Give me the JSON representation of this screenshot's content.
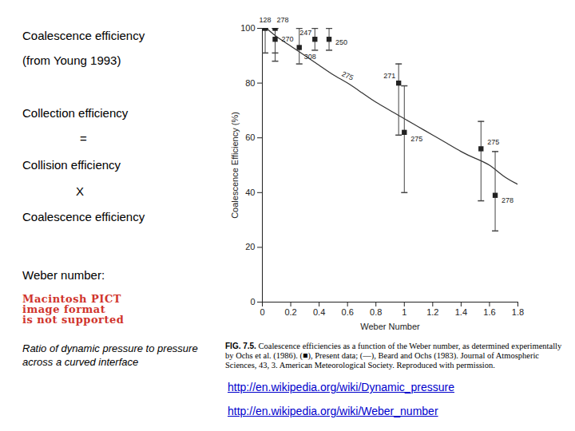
{
  "chart_data": {
    "type": "scatter",
    "x_label": "Weber Number",
    "y_label": "Coalescence Efficiency (%)",
    "caption_label": "FIG. 7.5.",
    "caption": "Coalescence efficiencies as a function of the Weber number, as determined experimentally by Ochs et al. (1986). (■), Present data; (—), Beard and Ochs (1983). Journal of Atmospheric Sciences, 43, 3. American Meteorological Society. Reproduced with permission.",
    "xlim": [
      0,
      1.8
    ],
    "xticks": [
      0,
      0.2,
      0.4,
      0.6,
      0.8,
      1,
      1.2,
      1.4,
      1.6,
      1.8
    ],
    "ylim": [
      0,
      100
    ],
    "yticks": [
      0,
      20,
      40,
      60,
      80,
      100
    ],
    "grid": false,
    "series": [
      {
        "type": "scatter",
        "marker": "square",
        "color": "#222222",
        "x": [
          0.02,
          0.09,
          0.09,
          0.26,
          0.37,
          0.47,
          0.96,
          1.0,
          1.54,
          1.64
        ],
        "values": [
          100,
          100,
          96,
          93,
          96,
          96,
          80,
          62,
          56,
          39
        ],
        "error_low": [
          91,
          91,
          88,
          87,
          92,
          92,
          61,
          40,
          37,
          26
        ],
        "error_high": [
          100,
          100,
          100,
          100,
          100,
          100,
          87,
          79,
          66,
          55
        ],
        "point_labels": [
          "128",
          "278",
          "270",
          "308",
          "247",
          "250",
          "271",
          "275",
          "275",
          "278"
        ]
      },
      {
        "type": "line",
        "line_style": "solid",
        "color": "#333333",
        "x": [
          0.03,
          0.1,
          0.2,
          0.3,
          0.4,
          0.5,
          0.6,
          0.7,
          0.8,
          0.9,
          1.0,
          1.1,
          1.2,
          1.3,
          1.4,
          1.5,
          1.6,
          1.7,
          1.8
        ],
        "values": [
          100,
          97,
          93.5,
          90,
          86.5,
          83,
          80,
          76.5,
          73,
          70,
          67,
          64,
          61,
          58,
          55,
          52.5,
          50,
          46,
          43
        ],
        "line_label": "275"
      }
    ]
  },
  "slide": {
    "heading": "Coalescence efficiency",
    "source": "(from Young 1993)",
    "equation": [
      "Collection efficiency",
      "=",
      "Collision efficiency",
      "X",
      "Coalescence efficiency"
    ],
    "weber_label": "Weber number:",
    "image_error": [
      "Macintosh PICT",
      "image format",
      "is not supported"
    ],
    "weber_definition": "Ratio of dynamic pressure to pressure across a curved interface",
    "links": [
      "http://en.wikipedia.org/wiki/Dynamic_pressure",
      "http://en.wikipedia.org/wiki/Weber_number"
    ]
  }
}
